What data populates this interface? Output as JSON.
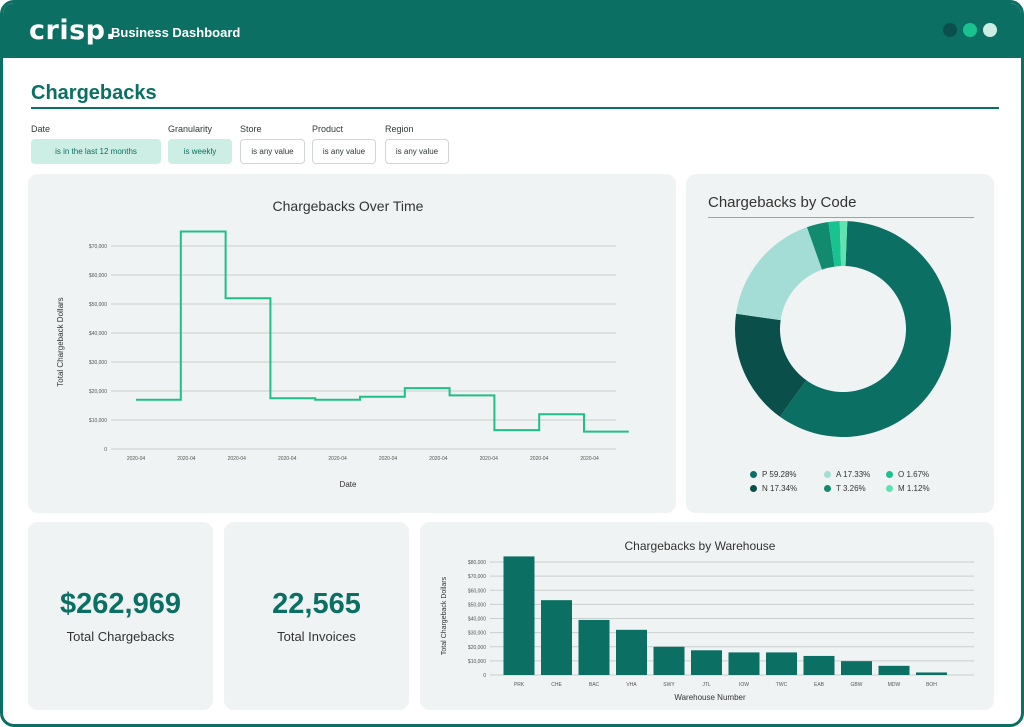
{
  "app": {
    "logo": "crisp.",
    "title": "Business Dashboard",
    "window_dots": [
      "#0a4f49",
      "#19c38f",
      "#cdeee4"
    ]
  },
  "page": {
    "title": "Chargebacks"
  },
  "filters": [
    {
      "label": "Date",
      "value": "is in the last 12 months",
      "active": true
    },
    {
      "label": "Granularity",
      "value": "is weekly",
      "active": true
    },
    {
      "label": "Store",
      "value": "is any value",
      "active": false
    },
    {
      "label": "Product",
      "value": "is any value",
      "active": false
    },
    {
      "label": "Region",
      "value": "is any value",
      "active": false
    }
  ],
  "kpis": [
    {
      "value": "$262,969",
      "label": "Total Chargebacks"
    },
    {
      "value": "22,565",
      "label": "Total Invoices"
    }
  ],
  "colors": {
    "accent": "#0b6f63",
    "line": "#1fbf88"
  },
  "chart_data": [
    {
      "type": "line",
      "title": "Chargebacks Over Time",
      "xlabel": "Date",
      "ylabel": "Total Chargeback Dollars",
      "y_ticks": [
        "0",
        "$10,000",
        "$20,000",
        "$30,000",
        "$40,000",
        "$50,000",
        "$60,000",
        "$70,000"
      ],
      "x_ticks": [
        "2020-04",
        "2020-04",
        "2020-04",
        "2020-04",
        "2020-04",
        "2020-04",
        "2020-04",
        "2020-04",
        "2020-04",
        "2020-04"
      ],
      "ylim": [
        0,
        70000
      ],
      "grid": true,
      "step": true,
      "x": [
        0,
        1,
        2,
        3,
        4,
        5,
        6,
        7,
        8,
        9,
        10
      ],
      "values": [
        17000,
        75000,
        52000,
        17500,
        17000,
        18000,
        21000,
        18500,
        6500,
        12000,
        6000
      ]
    },
    {
      "type": "pie",
      "title": "Chargebacks by Code",
      "donut": true,
      "slices": [
        {
          "label": "P 59.28%",
          "value": 59.28,
          "color": "#0b6f63"
        },
        {
          "label": "N 17.34%",
          "value": 17.34,
          "color": "#0a4f49"
        },
        {
          "label": "A 17.33%",
          "value": 17.33,
          "color": "#a3ddd5"
        },
        {
          "label": "T 3.26%",
          "value": 3.26,
          "color": "#128a6e"
        },
        {
          "label": "O 1.67%",
          "value": 1.67,
          "color": "#19c38f"
        },
        {
          "label": "M 1.12%",
          "value": 1.12,
          "color": "#5fe3b0"
        }
      ]
    },
    {
      "type": "bar",
      "title": "Chargebacks by Warehouse",
      "xlabel": "Warehouse Number",
      "ylabel": "Total Chargeback Dollars",
      "y_ticks": [
        "0",
        "$10,000",
        "$20,000",
        "$30,000",
        "$40,000",
        "$50,000",
        "$60,000",
        "$70,000",
        "$80,000"
      ],
      "ylim": [
        0,
        85000
      ],
      "grid": true,
      "categories": [
        "PRK",
        "CHE",
        "BAC",
        "VHA",
        "SWY",
        "JTL",
        "IOW",
        "TWC",
        "EAB",
        "GBW",
        "MDW",
        "BOH"
      ],
      "values": [
        84000,
        53000,
        39000,
        32000,
        20000,
        17500,
        16000,
        16000,
        13500,
        9800,
        6500,
        1800
      ]
    }
  ]
}
